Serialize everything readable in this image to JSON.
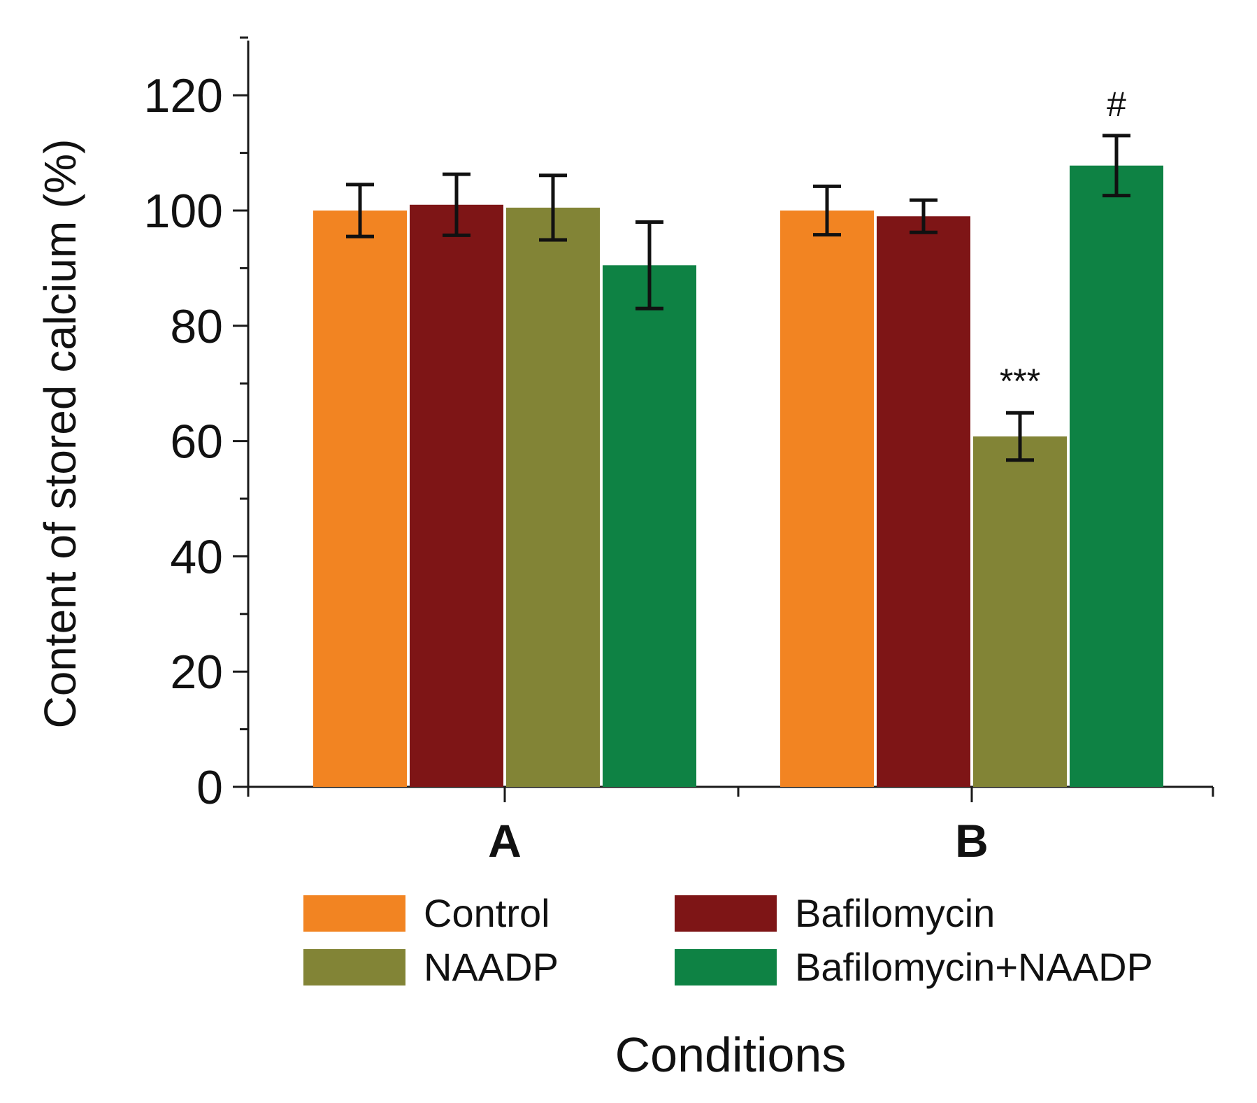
{
  "chart_data": {
    "type": "bar",
    "categories": [
      "A",
      "B"
    ],
    "series": [
      {
        "name": "Control",
        "color": "#f28422",
        "values": [
          100,
          100
        ],
        "errors": [
          4.5,
          4.2
        ]
      },
      {
        "name": "Bafilomycin",
        "color": "#7e1516",
        "values": [
          101,
          99
        ],
        "errors": [
          5.3,
          2.8
        ]
      },
      {
        "name": "NAADP",
        "color": "#828436",
        "values": [
          100.5,
          60.8
        ],
        "errors": [
          5.6,
          4.1
        ]
      },
      {
        "name": "Bafilomycin+NAADP",
        "color": "#0e8244",
        "values": [
          90.5,
          107.8
        ],
        "errors": [
          7.5,
          5.2
        ]
      }
    ],
    "annotations": [
      {
        "category": "B",
        "series": "NAADP",
        "text": "***"
      },
      {
        "category": "B",
        "series": "Bafilomycin+NAADP",
        "text": "#"
      }
    ],
    "title": "",
    "xlabel": "Conditions",
    "ylabel": "Content of stored calcium (%)",
    "ylim": [
      0,
      130
    ],
    "yticks": [
      0,
      20,
      40,
      60,
      80,
      100,
      120
    ],
    "grid": false,
    "legend_placement": "bottom"
  }
}
